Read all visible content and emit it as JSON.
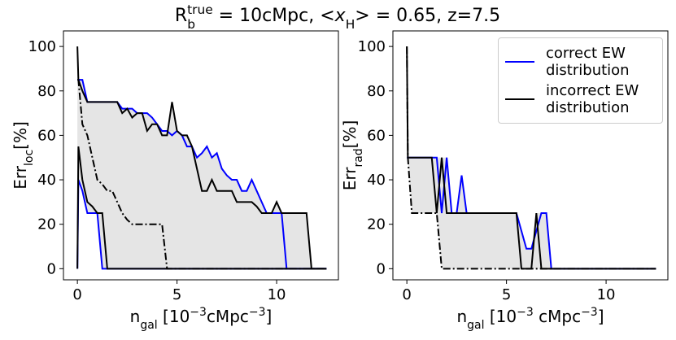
{
  "title": [
    "R",
    "b",
    "true",
    " = 10cMpc, <",
    "x",
    "H",
    "> = 0.65, z=7.5"
  ],
  "chart_data": [
    {
      "type": "line",
      "xlabel": [
        "n",
        "gal",
        " [10",
        "−3",
        "cMpc",
        "−3",
        "]"
      ],
      "ylabel": [
        "Err",
        "loc",
        "[%]"
      ],
      "xlim": [
        -0.7,
        13.1
      ],
      "ylim": [
        -5,
        107
      ],
      "xticks": [
        0,
        5,
        10
      ],
      "yticks": [
        0,
        20,
        40,
        60,
        80,
        100
      ],
      "shade": "#e5e5e5",
      "x": [
        0,
        0.05,
        0.25,
        0.5,
        0.75,
        1,
        1.25,
        1.5,
        1.75,
        2,
        2.25,
        2.5,
        2.75,
        3,
        3.25,
        3.5,
        3.75,
        4,
        4.25,
        4.5,
        4.75,
        5,
        5.25,
        5.5,
        5.75,
        6,
        6.25,
        6.5,
        6.75,
        7,
        7.25,
        7.5,
        7.75,
        8,
        8.25,
        8.5,
        8.75,
        9,
        9.25,
        9.5,
        9.75,
        10,
        10.25,
        10.5,
        10.75,
        11,
        11.25,
        11.5,
        11.75,
        12,
        12.25,
        12.5
      ],
      "series": [
        {
          "color": "#0000ff",
          "dash": "solid",
          "values": [
            85,
            85,
            85,
            75,
            75,
            75,
            75,
            75,
            75,
            75,
            72,
            72,
            72,
            70,
            70,
            70,
            68,
            65,
            62,
            62,
            60,
            62,
            60,
            55,
            55,
            50,
            52,
            55,
            50,
            52,
            45,
            42,
            40,
            40,
            35,
            35,
            40,
            35,
            30,
            25,
            25,
            25,
            25,
            0,
            0,
            0,
            0,
            0,
            0,
            0,
            0,
            0
          ]
        },
        {
          "color": "#0000ff",
          "dash": "solid",
          "values": [
            0,
            40,
            35,
            25,
            25,
            25,
            0,
            0,
            0,
            0,
            0,
            0,
            0,
            0,
            0,
            0,
            0,
            0,
            0,
            0,
            0,
            0,
            0,
            0,
            0,
            0,
            0,
            0,
            0,
            0,
            0,
            0,
            0,
            0,
            0,
            0,
            0,
            0,
            0,
            0,
            0,
            0,
            0,
            0,
            0,
            0,
            0,
            0,
            0,
            0,
            0,
            0
          ]
        },
        {
          "color": "#000000",
          "dash": "solid",
          "values": [
            100,
            85,
            80,
            75,
            75,
            75,
            75,
            75,
            75,
            75,
            70,
            72,
            68,
            70,
            70,
            62,
            65,
            65,
            60,
            60,
            75,
            62,
            60,
            60,
            55,
            45,
            35,
            35,
            40,
            35,
            35,
            35,
            35,
            30,
            30,
            30,
            30,
            28,
            25,
            25,
            25,
            30,
            25,
            25,
            25,
            25,
            25,
            25,
            0,
            0,
            0,
            0
          ]
        },
        {
          "color": "#000000",
          "dash": "solid",
          "values": [
            0,
            55,
            40,
            30,
            28,
            25,
            25,
            0,
            0,
            0,
            0,
            0,
            0,
            0,
            0,
            0,
            0,
            0,
            0,
            0,
            0,
            0,
            0,
            0,
            0,
            0,
            0,
            0,
            0,
            0,
            0,
            0,
            0,
            0,
            0,
            0,
            0,
            0,
            0,
            0,
            0,
            0,
            0,
            0,
            0,
            0,
            0,
            0,
            0,
            0,
            0,
            0
          ]
        },
        {
          "color": "#000000",
          "dash": "dashdot",
          "values": [
            85,
            85,
            65,
            60,
            50,
            40,
            38,
            35,
            35,
            30,
            25,
            22,
            20,
            20,
            20,
            20,
            20,
            20,
            20,
            0,
            0,
            0,
            0,
            0,
            0,
            0,
            0,
            0,
            0,
            0,
            0,
            0,
            0,
            0,
            0,
            0,
            0,
            0,
            0,
            0,
            0,
            0,
            0,
            0,
            0,
            0,
            0,
            0,
            0,
            0,
            0,
            0
          ]
        }
      ]
    },
    {
      "type": "line",
      "xlabel": [
        "n",
        "gal",
        " [10",
        "−3",
        " cMpc",
        "−3",
        "]"
      ],
      "ylabel": [
        "Err",
        "rad",
        "[%]"
      ],
      "xlim": [
        -0.7,
        13.1
      ],
      "ylim": [
        -5,
        107
      ],
      "xticks": [
        0,
        5,
        10
      ],
      "yticks": [
        0,
        20,
        40,
        60,
        80,
        100
      ],
      "shade": "#e5e5e5",
      "legend": "upper right",
      "x": [
        0,
        0.05,
        0.25,
        0.5,
        0.75,
        1,
        1.25,
        1.5,
        1.75,
        2,
        2.25,
        2.5,
        2.75,
        3,
        3.25,
        3.5,
        3.75,
        4,
        4.25,
        4.5,
        4.75,
        5,
        5.25,
        5.5,
        5.75,
        6,
        6.25,
        6.5,
        6.75,
        7,
        7.25,
        7.5,
        7.75,
        8,
        8.25,
        8.5,
        8.75,
        9,
        9.25,
        9.5,
        9.75,
        10,
        10.25,
        10.5,
        10.75,
        11,
        11.25,
        11.5,
        11.75,
        12,
        12.25,
        12.5
      ],
      "series": [
        {
          "name": "correct EW distribution",
          "color": "#0000ff",
          "dash": "solid",
          "values": [
            50,
            50,
            50,
            50,
            50,
            50,
            50,
            50,
            25,
            50,
            25,
            25,
            42,
            25,
            25,
            25,
            25,
            25,
            25,
            25,
            25,
            25,
            25,
            25,
            17,
            9,
            9,
            17,
            25,
            25,
            0,
            0,
            0,
            0,
            0,
            0,
            0,
            0,
            0,
            0,
            0,
            0,
            0,
            0,
            0,
            0,
            0,
            0,
            0,
            0,
            0,
            0
          ]
        },
        {
          "name": "incorrect EW distribution",
          "color": "#000000",
          "dash": "solid",
          "values": [
            100,
            50,
            50,
            50,
            50,
            50,
            50,
            25,
            50,
            25,
            25,
            25,
            25,
            25,
            25,
            25,
            25,
            25,
            25,
            25,
            25,
            25,
            25,
            25,
            0,
            0,
            0,
            25,
            0,
            0,
            0,
            0,
            0,
            0,
            0,
            0,
            0,
            0,
            0,
            0,
            0,
            0,
            0,
            0,
            0,
            0,
            0,
            0,
            0,
            0,
            0,
            0
          ]
        },
        {
          "color": "#000000",
          "dash": "dashdot",
          "values": [
            100,
            50,
            25,
            25,
            25,
            25,
            25,
            25,
            0,
            0,
            0,
            0,
            0,
            0,
            0,
            0,
            0,
            0,
            0,
            0,
            0,
            0,
            0,
            0,
            0,
            0,
            0,
            0,
            0,
            0,
            0,
            0,
            0,
            0,
            0,
            0,
            0,
            0,
            0,
            0,
            0,
            0,
            0,
            0,
            0,
            0,
            0,
            0,
            0,
            0,
            0,
            0
          ]
        }
      ]
    }
  ]
}
